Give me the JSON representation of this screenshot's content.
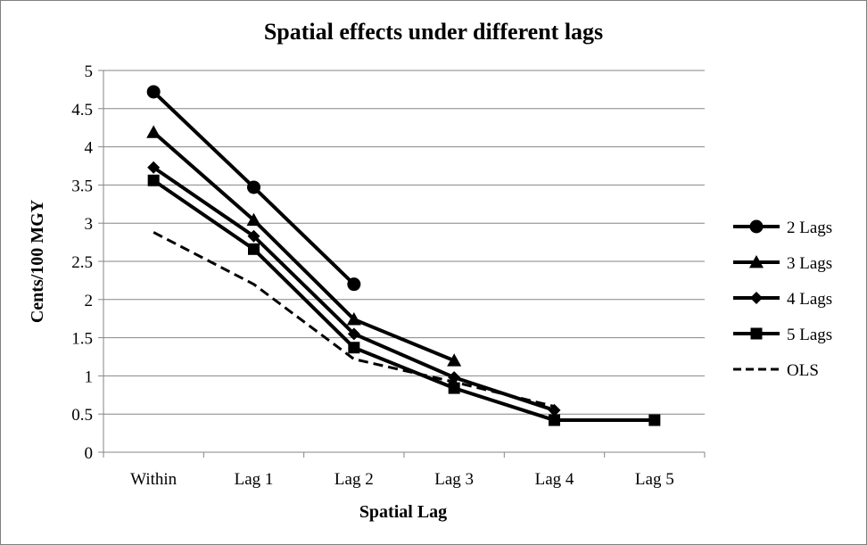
{
  "chart_data": {
    "type": "line",
    "title": "Spatial effects under different lags",
    "xlabel": "Spatial Lag",
    "ylabel": "Cents/100 MGY",
    "categories": [
      "Within",
      "Lag 1",
      "Lag 2",
      "Lag 3",
      "Lag 4",
      "Lag 5"
    ],
    "ylim": [
      0,
      5
    ],
    "yticks": [
      "0",
      "0.5",
      "1",
      "1.5",
      "2",
      "2.5",
      "3",
      "3.5",
      "4",
      "4.5",
      "5"
    ],
    "grid": "horizontal",
    "legend_position": "right",
    "series": [
      {
        "name": "2 Lags",
        "marker": "circle",
        "dash": "solid",
        "values": [
          4.72,
          3.47,
          2.2,
          null,
          null,
          null
        ]
      },
      {
        "name": "3 Lags",
        "marker": "triangle",
        "dash": "solid",
        "values": [
          4.19,
          3.04,
          1.74,
          1.2,
          null,
          null
        ]
      },
      {
        "name": "4 Lags",
        "marker": "diamond",
        "dash": "solid",
        "values": [
          3.73,
          2.83,
          1.55,
          0.98,
          0.55,
          null
        ]
      },
      {
        "name": "5 Lags",
        "marker": "square",
        "dash": "solid",
        "values": [
          3.56,
          2.66,
          1.37,
          0.84,
          0.42,
          0.42
        ]
      },
      {
        "name": "OLS",
        "marker": "none",
        "dash": "dashed",
        "values": [
          2.88,
          2.2,
          1.22,
          0.92,
          0.6,
          null
        ]
      }
    ],
    "colors": {
      "line": "#000000",
      "grid": "#868686",
      "axis": "#868686",
      "border": "#7f7f7f"
    }
  }
}
